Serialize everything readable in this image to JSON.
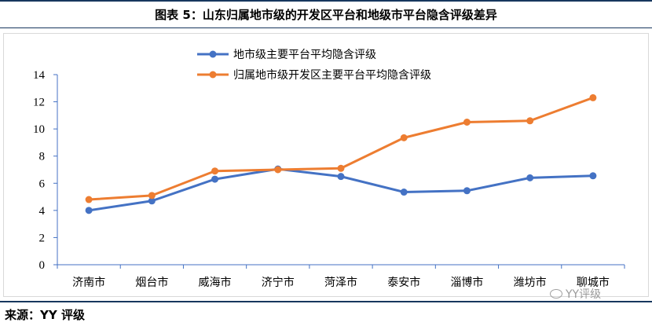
{
  "figure_title": "图表 5：山东归属地市级的开发区平台和地级市平台隐含评级差异",
  "source": "来源：YY 评级",
  "watermark": "YY评级",
  "colors": {
    "series1": "#4472c4",
    "series2": "#ed7d31",
    "axis": "#4472c4",
    "title_rule": "#17375e"
  },
  "chart_data": {
    "type": "line",
    "title": "",
    "xlabel": "",
    "ylabel": "",
    "ylim": [
      0,
      14
    ],
    "yticks": [
      0,
      2,
      4,
      6,
      8,
      10,
      12,
      14
    ],
    "grid": false,
    "legend_position": "top-center",
    "categories": [
      "济南市",
      "烟台市",
      "威海市",
      "济宁市",
      "菏泽市",
      "泰安市",
      "淄博市",
      "潍坊市",
      "聊城市"
    ],
    "series": [
      {
        "name": "地市级主要平台平均隐含评级",
        "values": [
          4.0,
          4.7,
          6.3,
          7.05,
          6.5,
          5.35,
          5.45,
          6.4,
          6.55
        ]
      },
      {
        "name": "归属地市级开发区主要平台平均隐含评级",
        "values": [
          4.8,
          5.1,
          6.9,
          7.0,
          7.1,
          9.35,
          10.5,
          10.6,
          12.3
        ]
      }
    ]
  }
}
